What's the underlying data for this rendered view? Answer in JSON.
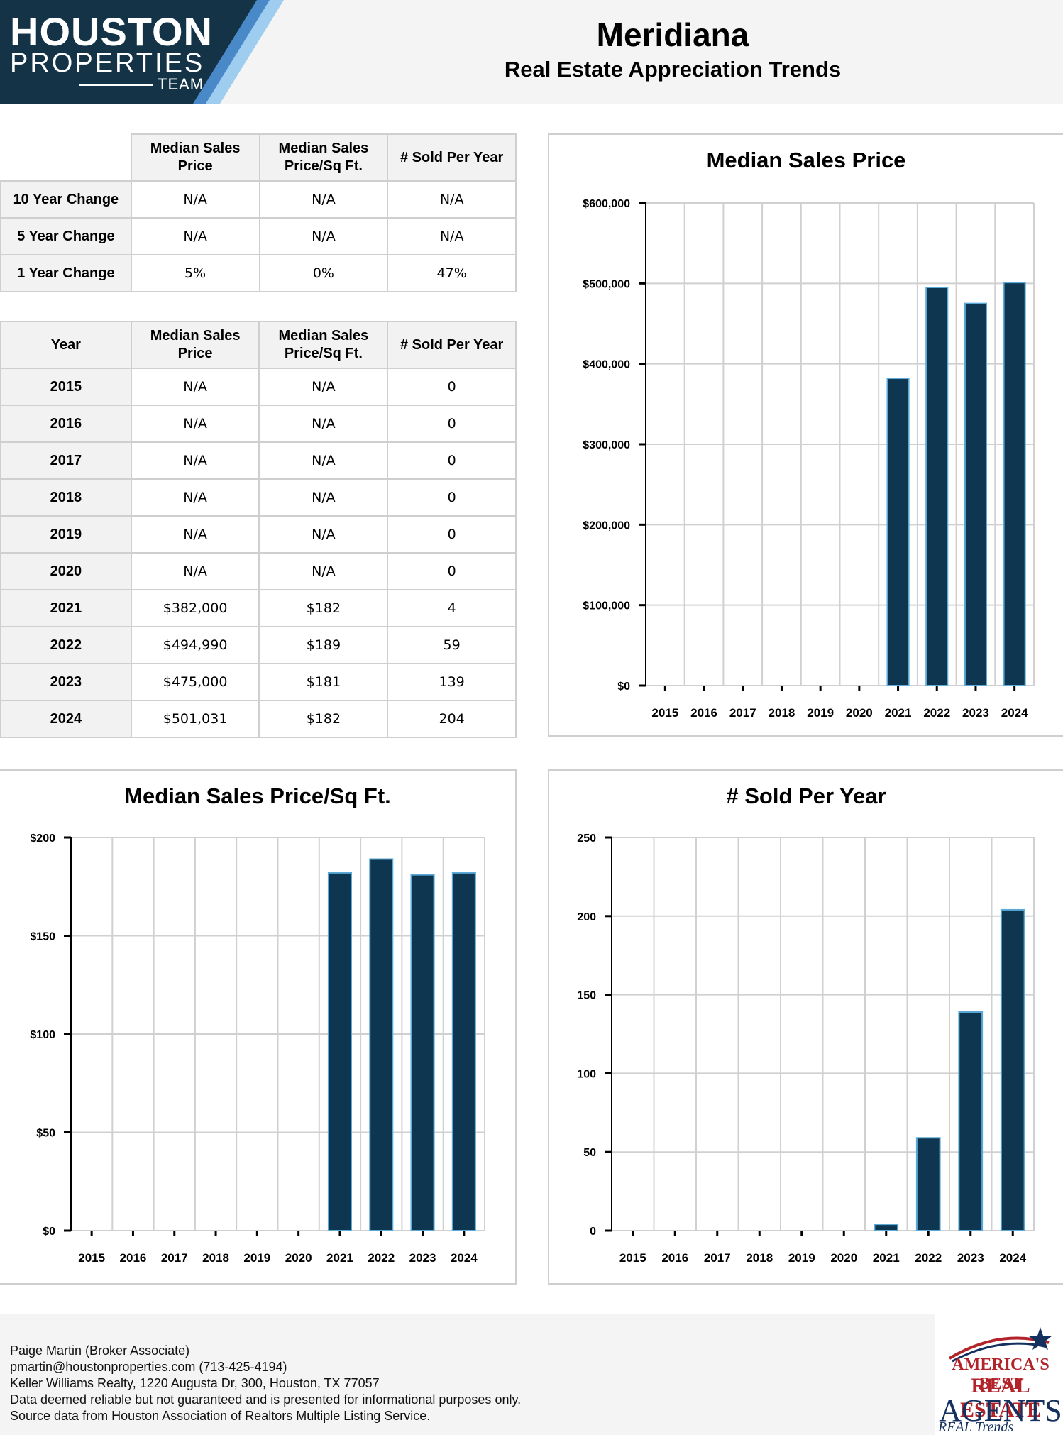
{
  "header": {
    "logo_line1": "HOUSTON",
    "logo_line2": "PROPERTIES",
    "logo_line3": "TEAM",
    "title": "Meridiana",
    "subtitle": "Real Estate Appreciation Trends"
  },
  "colors": {
    "navy": "#0e3650",
    "bar_outline": "#5aa9d6",
    "logo_bg": "#143347",
    "logo_stripe_light": "#9fcdef",
    "logo_stripe_dark": "#4a89c8"
  },
  "change_table": {
    "headers": [
      "",
      "Median Sales Price",
      "Median Sales Price/Sq Ft.",
      "# Sold Per Year"
    ],
    "rows": [
      {
        "label": "10 Year Change",
        "price": "N/A",
        "sqft": "N/A",
        "sold": "N/A"
      },
      {
        "label": "5 Year Change",
        "price": "N/A",
        "sqft": "N/A",
        "sold": "N/A"
      },
      {
        "label": "1 Year Change",
        "price": "5%",
        "sqft": "0%",
        "sold": "47%"
      }
    ]
  },
  "year_table": {
    "headers": [
      "Year",
      "Median Sales Price",
      "Median Sales Price/Sq Ft.",
      "# Sold Per Year"
    ],
    "rows": [
      {
        "year": "2015",
        "price": "N/A",
        "sqft": "N/A",
        "sold": "0"
      },
      {
        "year": "2016",
        "price": "N/A",
        "sqft": "N/A",
        "sold": "0"
      },
      {
        "year": "2017",
        "price": "N/A",
        "sqft": "N/A",
        "sold": "0"
      },
      {
        "year": "2018",
        "price": "N/A",
        "sqft": "N/A",
        "sold": "0"
      },
      {
        "year": "2019",
        "price": "N/A",
        "sqft": "N/A",
        "sold": "0"
      },
      {
        "year": "2020",
        "price": "N/A",
        "sqft": "N/A",
        "sold": "0"
      },
      {
        "year": "2021",
        "price": "$382,000",
        "sqft": "$182",
        "sold": "4"
      },
      {
        "year": "2022",
        "price": "$494,990",
        "sqft": "$189",
        "sold": "59"
      },
      {
        "year": "2023",
        "price": "$475,000",
        "sqft": "$181",
        "sold": "139"
      },
      {
        "year": "2024",
        "price": "$501,031",
        "sqft": "$182",
        "sold": "204"
      }
    ]
  },
  "chart_data": [
    {
      "id": "price",
      "type": "bar",
      "title": "Median Sales Price",
      "categories": [
        "2015",
        "2016",
        "2017",
        "2018",
        "2019",
        "2020",
        "2021",
        "2022",
        "2023",
        "2024"
      ],
      "values": [
        0,
        0,
        0,
        0,
        0,
        0,
        382000,
        494990,
        475000,
        501031
      ],
      "ylim": [
        0,
        600000
      ],
      "yticks": [
        0,
        100000,
        200000,
        300000,
        400000,
        500000,
        600000
      ],
      "ytick_labels": [
        "$0",
        "$100,000",
        "$200,000",
        "$300,000",
        "$400,000",
        "$500,000",
        "$600,000"
      ],
      "xlabel": "",
      "ylabel": "",
      "grid": true
    },
    {
      "id": "sqft",
      "type": "bar",
      "title": "Median Sales Price/Sq Ft.",
      "categories": [
        "2015",
        "2016",
        "2017",
        "2018",
        "2019",
        "2020",
        "2021",
        "2022",
        "2023",
        "2024"
      ],
      "values": [
        0,
        0,
        0,
        0,
        0,
        0,
        182,
        189,
        181,
        182
      ],
      "ylim": [
        0,
        200
      ],
      "yticks": [
        0,
        50,
        100,
        150,
        200
      ],
      "ytick_labels": [
        "$0",
        "$50",
        "$100",
        "$150",
        "$200"
      ],
      "xlabel": "",
      "ylabel": "",
      "grid": true
    },
    {
      "id": "sold",
      "type": "bar",
      "title": "# Sold Per Year",
      "categories": [
        "2015",
        "2016",
        "2017",
        "2018",
        "2019",
        "2020",
        "2021",
        "2022",
        "2023",
        "2024"
      ],
      "values": [
        0,
        0,
        0,
        0,
        0,
        0,
        4,
        59,
        139,
        204
      ],
      "ylim": [
        0,
        250
      ],
      "yticks": [
        0,
        50,
        100,
        150,
        200,
        250
      ],
      "ytick_labels": [
        "0",
        "50",
        "100",
        "150",
        "200",
        "250"
      ],
      "xlabel": "",
      "ylabel": "",
      "grid": true
    }
  ],
  "footer": {
    "agent": "Paige Martin (Broker Associate)",
    "contact": "pmartin@houstonproperties.com (713-425-4194)",
    "office": "Keller Williams Realty, 1220 Augusta Dr, 300, Houston, TX 77057",
    "disclaimer": "Data deemed reliable but not guaranteed and is presented for informational purposes only.",
    "source": "Source data from Houston Association of Realtors Multiple Listing Service.",
    "badge_line1": "AMERICA'S BEST",
    "badge_line2": "REAL ESTATE",
    "badge_line3": "AGENTS",
    "badge_line4": "REAL Trends"
  }
}
